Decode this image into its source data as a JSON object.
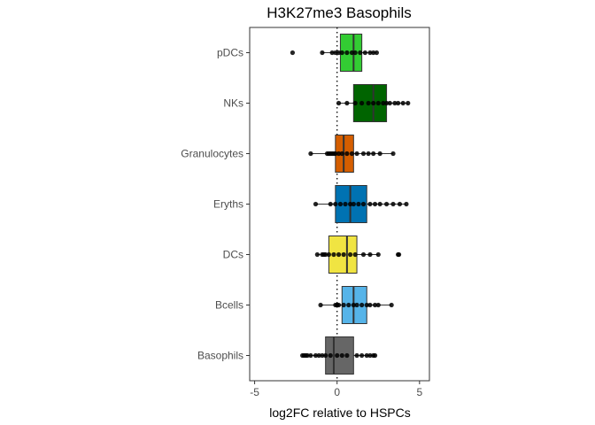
{
  "chart_data": {
    "type": "box",
    "title": "H3K27me3 Basophils",
    "xlabel": "log2FC relative to HSPCs",
    "ylabel": "",
    "xlim": [
      -5.3,
      5.6
    ],
    "xticks": [
      -5,
      0,
      5
    ],
    "xtick_labels": [
      "-5",
      "0",
      "5"
    ],
    "reference_line_x": 0,
    "grid": false,
    "legend": "none",
    "categories": [
      "Basophils",
      "Bcells",
      "DCs",
      "Eryths",
      "Granulocytes",
      "NKs",
      "pDCs"
    ],
    "colors": [
      "#666666",
      "#56b4e9",
      "#f0e442",
      "#0072b2",
      "#d55e00",
      "#006400",
      "#33cc33"
    ],
    "boxes": [
      {
        "q1": -0.7,
        "median": -0.2,
        "q3": 1.0,
        "whisker_low": -2.0,
        "whisker_high": 2.3,
        "points": [
          -2.1,
          -2.0,
          -1.9,
          -1.8,
          -1.6,
          -1.3,
          -1.1,
          -0.9,
          -0.7,
          -0.4,
          0.0,
          0.3,
          0.6,
          1.2,
          1.5,
          1.8,
          2.0,
          2.2,
          2.3
        ]
      },
      {
        "q1": 0.3,
        "median": 1.0,
        "q3": 1.8,
        "whisker_low": -1.0,
        "whisker_high": 3.3,
        "points": [
          -1.0,
          -0.1,
          0.0,
          0.1,
          0.4,
          0.7,
          1.0,
          1.2,
          1.5,
          1.8,
          2.0,
          2.3,
          2.5,
          3.3
        ]
      },
      {
        "q1": -0.5,
        "median": 0.6,
        "q3": 1.2,
        "whisker_low": -1.2,
        "whisker_high": 2.5,
        "points": [
          -1.2,
          -0.9,
          -0.8,
          -0.7,
          -0.5,
          -0.2,
          0.1,
          0.4,
          0.8,
          1.1,
          1.6,
          2.0,
          2.5,
          3.7,
          3.75
        ]
      },
      {
        "q1": -0.1,
        "median": 0.8,
        "q3": 1.8,
        "whisker_low": -1.3,
        "whisker_high": 4.2,
        "points": [
          -1.3,
          -0.4,
          -0.1,
          0.2,
          0.5,
          0.8,
          1.0,
          1.3,
          1.6,
          2.0,
          2.3,
          2.6,
          3.0,
          3.4,
          3.8,
          4.2
        ]
      },
      {
        "q1": -0.1,
        "median": 0.4,
        "q3": 1.0,
        "whisker_low": -1.6,
        "whisker_high": 3.4,
        "points": [
          -1.6,
          -0.6,
          -0.5,
          -0.4,
          -0.3,
          -0.2,
          -0.1,
          0.1,
          0.3,
          0.6,
          0.9,
          1.2,
          1.6,
          1.9,
          2.2,
          2.6,
          3.4
        ]
      },
      {
        "q1": 1.0,
        "median": 2.2,
        "q3": 3.0,
        "whisker_low": 0.1,
        "whisker_high": 4.3,
        "points": [
          0.1,
          0.6,
          1.1,
          1.5,
          1.9,
          2.2,
          2.5,
          2.8,
          3.0,
          3.2,
          3.5,
          3.7,
          4.0,
          4.3
        ]
      },
      {
        "q1": 0.2,
        "median": 1.0,
        "q3": 1.5,
        "whisker_low": -0.9,
        "whisker_high": 2.4,
        "points": [
          -2.7,
          -0.9,
          -0.3,
          -0.1,
          0.1,
          0.3,
          0.6,
          0.9,
          1.1,
          1.4,
          1.7,
          2.0,
          2.2,
          2.4
        ]
      }
    ]
  }
}
